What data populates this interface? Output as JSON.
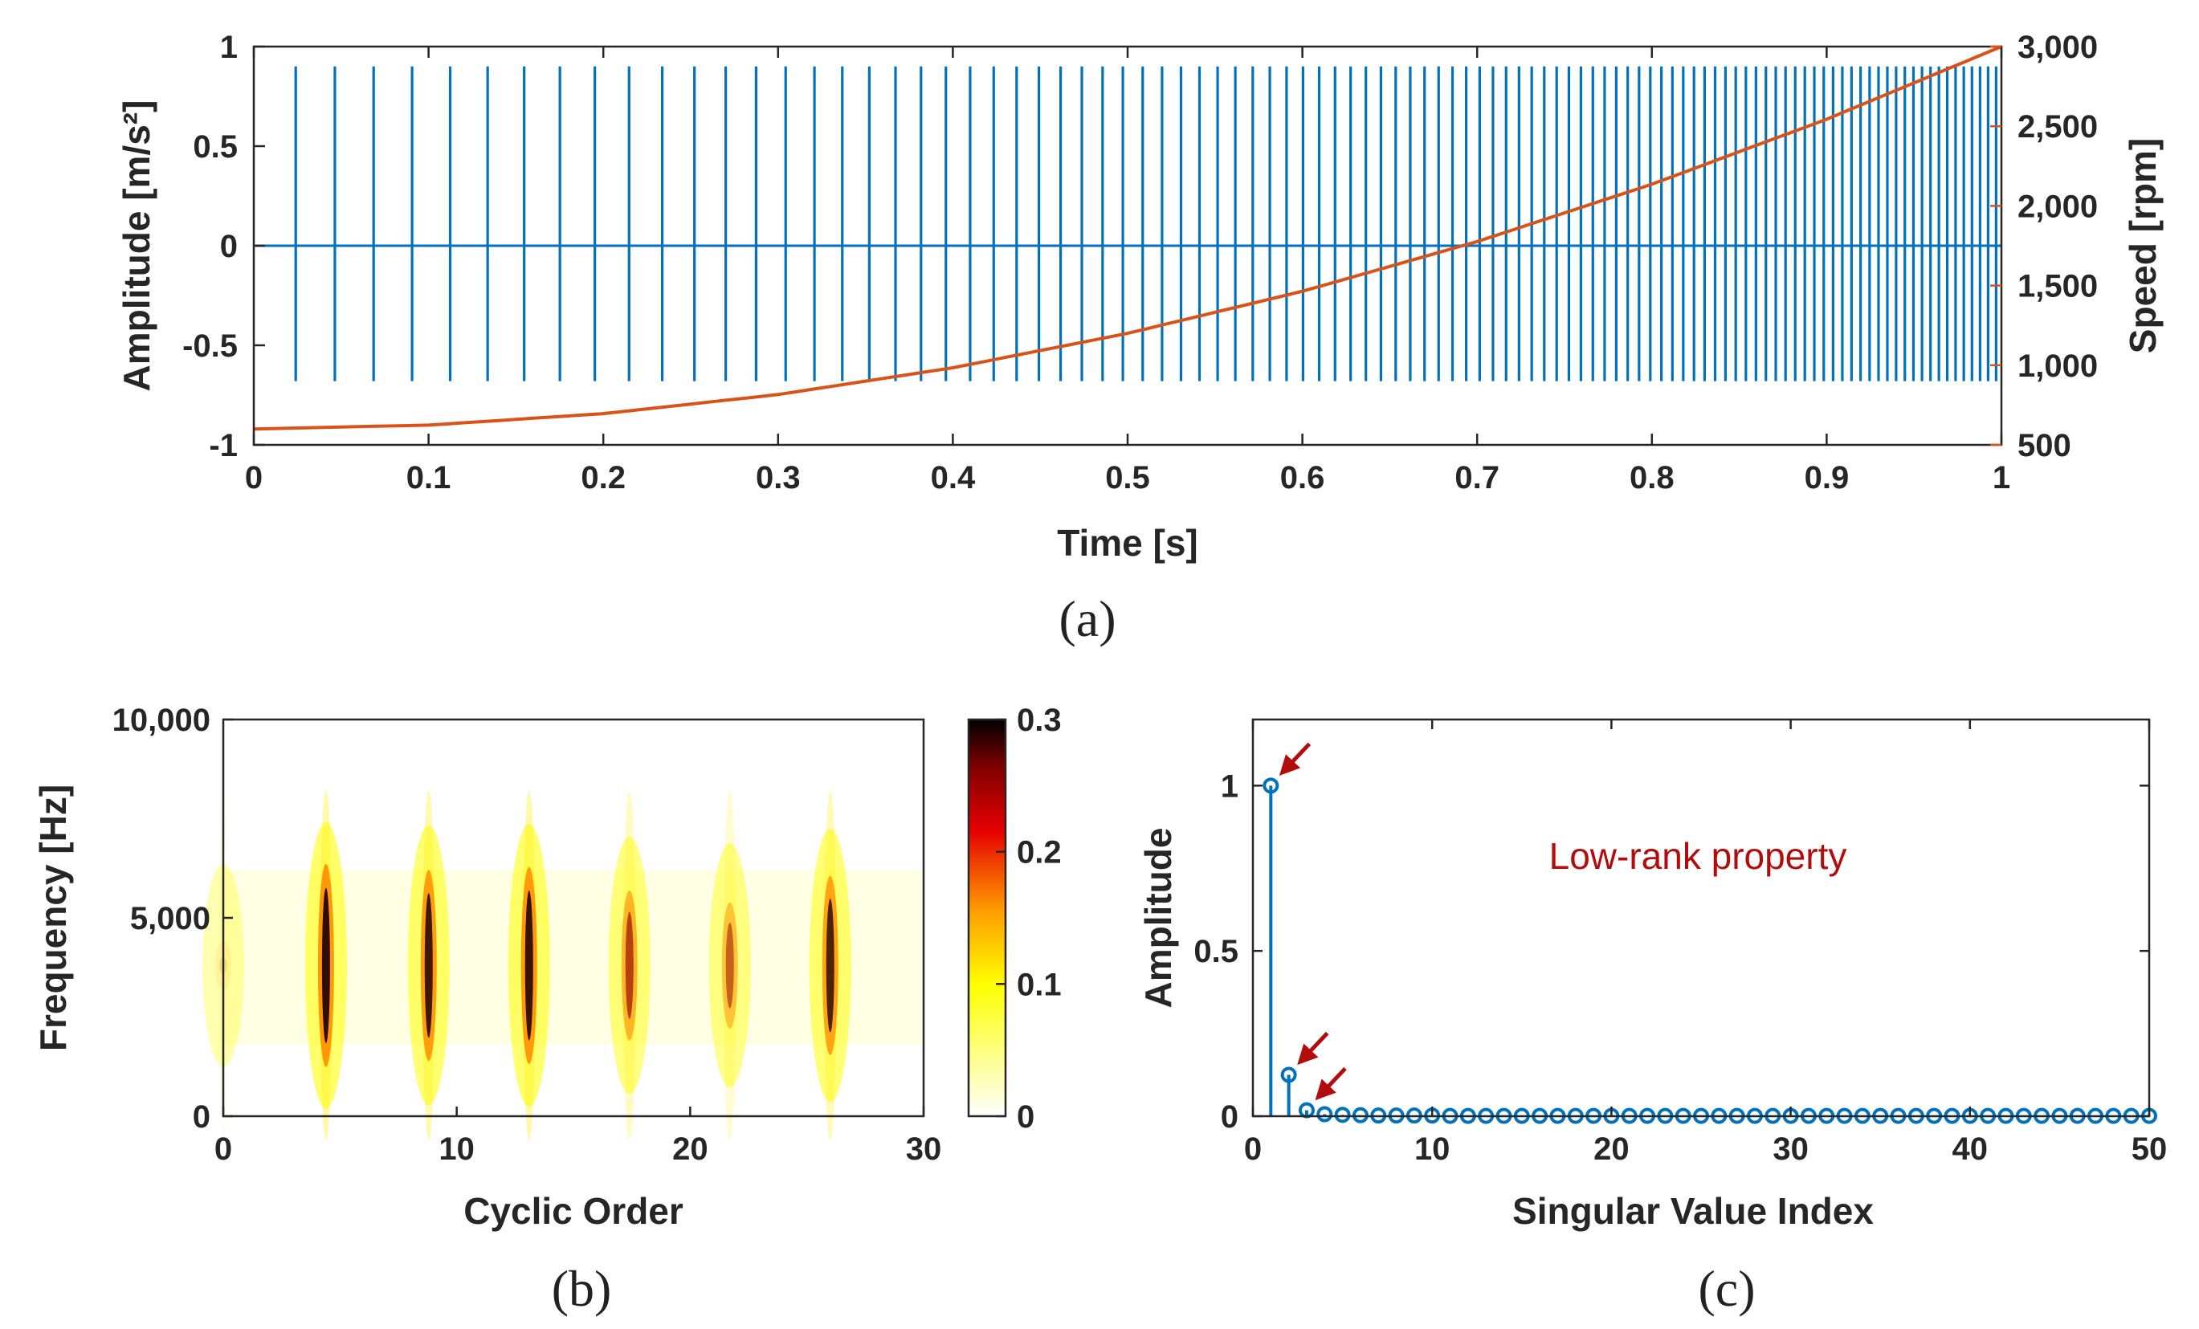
{
  "colors": {
    "signal": "#0072bd",
    "speed": "#d95319",
    "annotation": "#b20d0d",
    "axis": "#262626"
  },
  "chart_data": [
    {
      "id": "a",
      "caption": "(a)",
      "type": "line",
      "title": "",
      "xlabel": "Time [s]",
      "ylabel_left": "Amplitude [m/s²]",
      "ylabel_right": "Speed [rpm]",
      "xlim": [
        0,
        1
      ],
      "ylim_left": [
        -1,
        1
      ],
      "ylim_right": [
        500,
        3000
      ],
      "xticks": [
        "0",
        "0.1",
        "0.2",
        "0.3",
        "0.4",
        "0.5",
        "0.6",
        "0.7",
        "0.8",
        "0.9",
        "1"
      ],
      "yticks_left": [
        "-1",
        "-0.5",
        "0",
        "0.5",
        "1"
      ],
      "yticks_right": [
        "500",
        "1,000",
        "1,500",
        "2,000",
        "2,500",
        "3,000"
      ],
      "grid": false,
      "series": [
        {
          "name": "Amplitude",
          "axis": "left",
          "kind": "impulse train",
          "impulse_peak": 0.9,
          "impulse_trough": -0.68,
          "baseline": 0,
          "note": "impulse rate proportional to shaft speed"
        },
        {
          "name": "Speed",
          "axis": "right",
          "x": [
            0,
            0.1,
            0.2,
            0.3,
            0.4,
            0.5,
            0.6,
            0.7,
            0.8,
            0.9,
            1.0
          ],
          "values": [
            600,
            624,
            696,
            816,
            984,
            1200,
            1464,
            1776,
            2136,
            2544,
            3000
          ]
        }
      ]
    },
    {
      "id": "b",
      "caption": "(b)",
      "type": "heatmap",
      "xlabel": "Cyclic Order",
      "ylabel": "Frequency [Hz]",
      "xlim": [
        0,
        30
      ],
      "ylim": [
        0,
        10000
      ],
      "xticks": [
        "0",
        "10",
        "20",
        "30"
      ],
      "yticks": [
        "0",
        "5,000",
        "10,000"
      ],
      "colorbar": {
        "min": 0,
        "max": 0.3,
        "ticks": [
          "0",
          "0.1",
          "0.2",
          "0.3"
        ]
      },
      "bands": [
        {
          "order": 0,
          "intensity": 0.03
        },
        {
          "order": 4.4,
          "intensity": 0.29
        },
        {
          "order": 8.8,
          "intensity": 0.27
        },
        {
          "order": 13.1,
          "intensity": 0.28
        },
        {
          "order": 17.4,
          "intensity": 0.2
        },
        {
          "order": 21.7,
          "intensity": 0.16
        },
        {
          "order": 26.0,
          "intensity": 0.25
        }
      ],
      "band_center_hz": 3800
    },
    {
      "id": "c",
      "caption": "(c)",
      "type": "scatter",
      "xlabel": "Singular Value Index",
      "ylabel": "Amplitude",
      "xlim": [
        0,
        50
      ],
      "ylim": [
        0,
        1.2
      ],
      "xticks": [
        "0",
        "10",
        "20",
        "30",
        "40",
        "50"
      ],
      "yticks": [
        "0",
        "0.5",
        "1"
      ],
      "annotation": "Low-rank property",
      "arrows_at_index": [
        1,
        2,
        3
      ],
      "values": [
        1.0,
        0.125,
        0.018,
        0.006,
        0.004,
        0.003,
        0.002,
        0.002,
        0.002,
        0.002,
        0.001,
        0.001,
        0.001,
        0.001,
        0.001,
        0.001,
        0.001,
        0.001,
        0.001,
        0.001,
        0.001,
        0.001,
        0.001,
        0.001,
        0.001,
        0.001,
        0.001,
        0.001,
        0.001,
        0.001,
        0.001,
        0.001,
        0.001,
        0.001,
        0.001,
        0.001,
        0.001,
        0.001,
        0.001,
        0.001,
        0.001,
        0.001,
        0.001,
        0.001,
        0.001,
        0.001,
        0.001,
        0.001,
        0.001,
        0.001
      ]
    }
  ]
}
